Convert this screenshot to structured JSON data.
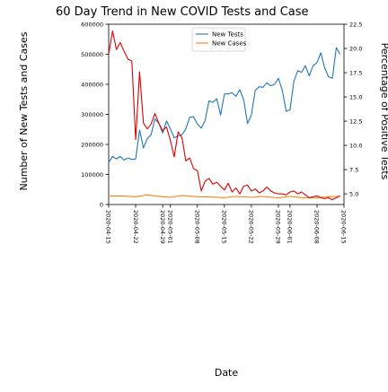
{
  "chart_data": {
    "type": "line",
    "title": "60 Day Trend in New COVID Tests and Case",
    "xlabel": "Date",
    "ylabel_left": "Number of New Tests and Cases",
    "ylabel_right": "Percentage of Positive Tests",
    "ylim_left": [
      0,
      600000
    ],
    "ylim_right": [
      3.9,
      22.5
    ],
    "yticks_left": [
      "0",
      "100000",
      "200000",
      "300000",
      "400000",
      "500000",
      "600000"
    ],
    "yticks_right": [
      "5.0",
      "7.5",
      "10.0",
      "12.5",
      "15.0",
      "17.5",
      "20.0",
      "22.5"
    ],
    "x_ticks": [
      "2020-04-15",
      "2020-04-22",
      "2020-04-29",
      "2020-05-01",
      "2020-05-08",
      "2020-05-15",
      "2020-05-22",
      "2020-05-29",
      "2020-06-01",
      "2020-06-08",
      "2020-06-15"
    ],
    "x_start": "2020-04-15",
    "x_end": "2020-06-15",
    "legend": [
      "New Tests",
      "New Cases"
    ],
    "legend_position": "top-center",
    "colors": {
      "tests": "#1f77b4",
      "cases": "#ff7f0e",
      "percent": "#dd0000"
    },
    "series": [
      {
        "name": "New Tests",
        "axis": "left",
        "x": [
          "2020-04-15",
          "2020-04-16",
          "2020-04-17",
          "2020-04-18",
          "2020-04-19",
          "2020-04-20",
          "2020-04-21",
          "2020-04-22",
          "2020-04-23",
          "2020-04-24",
          "2020-04-25",
          "2020-04-26",
          "2020-04-27",
          "2020-04-28",
          "2020-04-29",
          "2020-04-30",
          "2020-05-01",
          "2020-05-02",
          "2020-05-03",
          "2020-05-04",
          "2020-05-05",
          "2020-05-06",
          "2020-05-07",
          "2020-05-08",
          "2020-05-09",
          "2020-05-10",
          "2020-05-11",
          "2020-05-12",
          "2020-05-13",
          "2020-05-14",
          "2020-05-15",
          "2020-05-16",
          "2020-05-17",
          "2020-05-18",
          "2020-05-19",
          "2020-05-20",
          "2020-05-21",
          "2020-05-22",
          "2020-05-23",
          "2020-05-24",
          "2020-05-25",
          "2020-05-26",
          "2020-05-27",
          "2020-05-28",
          "2020-05-29",
          "2020-05-30",
          "2020-05-31",
          "2020-06-01",
          "2020-06-02",
          "2020-06-03",
          "2020-06-04",
          "2020-06-05",
          "2020-06-06",
          "2020-06-07",
          "2020-06-08",
          "2020-06-09",
          "2020-06-10",
          "2020-06-11",
          "2020-06-12",
          "2020-06-13",
          "2020-06-14"
        ],
        "values": [
          140000,
          160000,
          152000,
          160000,
          148000,
          155000,
          150000,
          152000,
          248000,
          188000,
          220000,
          232000,
          285000,
          270000,
          238000,
          278000,
          252000,
          222000,
          228000,
          232000,
          252000,
          290000,
          292000,
          268000,
          254000,
          280000,
          345000,
          340000,
          352000,
          298000,
          368000,
          368000,
          372000,
          360000,
          382000,
          348000,
          270000,
          298000,
          380000,
          392000,
          390000,
          405000,
          395000,
          400000,
          420000,
          380000,
          310000,
          315000,
          410000,
          445000,
          440000,
          462000,
          428000,
          462000,
          472000,
          505000,
          455000,
          425000,
          420000,
          522000,
          500000
        ]
      },
      {
        "name": "New Cases",
        "axis": "left",
        "x": [
          "2020-04-15",
          "2020-04-18",
          "2020-04-22",
          "2020-04-25",
          "2020-04-29",
          "2020-05-01",
          "2020-05-04",
          "2020-05-08",
          "2020-05-11",
          "2020-05-15",
          "2020-05-18",
          "2020-05-22",
          "2020-05-25",
          "2020-05-29",
          "2020-06-01",
          "2020-06-04",
          "2020-06-08",
          "2020-06-11",
          "2020-06-14"
        ],
        "values": [
          28000,
          29000,
          26000,
          32000,
          26000,
          24000,
          30000,
          26000,
          25000,
          23000,
          27000,
          24000,
          27000,
          22000,
          27000,
          23000,
          22000,
          26000,
          27000
        ]
      },
      {
        "axis": "right",
        "x": [
          "2020-04-15",
          "2020-04-16",
          "2020-04-17",
          "2020-04-18",
          "2020-04-19",
          "2020-04-20",
          "2020-04-21",
          "2020-04-22",
          "2020-04-23",
          "2020-04-24",
          "2020-04-25",
          "2020-04-26",
          "2020-04-27",
          "2020-04-28",
          "2020-04-29",
          "2020-04-30",
          "2020-05-01",
          "2020-05-02",
          "2020-05-03",
          "2020-05-04",
          "2020-05-05",
          "2020-05-06",
          "2020-05-07",
          "2020-05-08",
          "2020-05-09",
          "2020-05-10",
          "2020-05-11",
          "2020-05-12",
          "2020-05-13",
          "2020-05-14",
          "2020-05-15",
          "2020-05-16",
          "2020-05-17",
          "2020-05-18",
          "2020-05-19",
          "2020-05-20",
          "2020-05-21",
          "2020-05-22",
          "2020-05-23",
          "2020-05-24",
          "2020-05-25",
          "2020-05-26",
          "2020-05-27",
          "2020-05-28",
          "2020-05-29",
          "2020-05-30",
          "2020-05-31",
          "2020-06-01",
          "2020-06-02",
          "2020-06-03",
          "2020-06-04",
          "2020-06-05",
          "2020-06-06",
          "2020-06-07",
          "2020-06-08",
          "2020-06-09",
          "2020-06-10",
          "2020-06-11",
          "2020-06-12",
          "2020-06-13",
          "2020-06-14"
        ],
        "values": [
          19.4,
          21.8,
          19.9,
          20.6,
          19.7,
          18.9,
          18.7,
          10.6,
          17.6,
          12.3,
          11.7,
          12.2,
          13.3,
          12.3,
          11.5,
          11.9,
          10.5,
          8.8,
          11.4,
          10.8,
          8.4,
          8.7,
          7.6,
          7.4,
          5.3,
          6.3,
          6.6,
          6.0,
          6.2,
          5.8,
          5.4,
          6.1,
          5.2,
          5.6,
          5.0,
          5.8,
          5.9,
          5.3,
          5.5,
          5.1,
          5.3,
          5.7,
          5.3,
          5.1,
          5.0,
          5.0,
          4.9,
          5.2,
          5.3,
          5.0,
          5.2,
          4.9,
          4.6,
          4.7,
          4.8,
          4.6,
          4.5,
          4.6,
          4.4,
          4.6,
          4.8
        ]
      }
    ]
  }
}
